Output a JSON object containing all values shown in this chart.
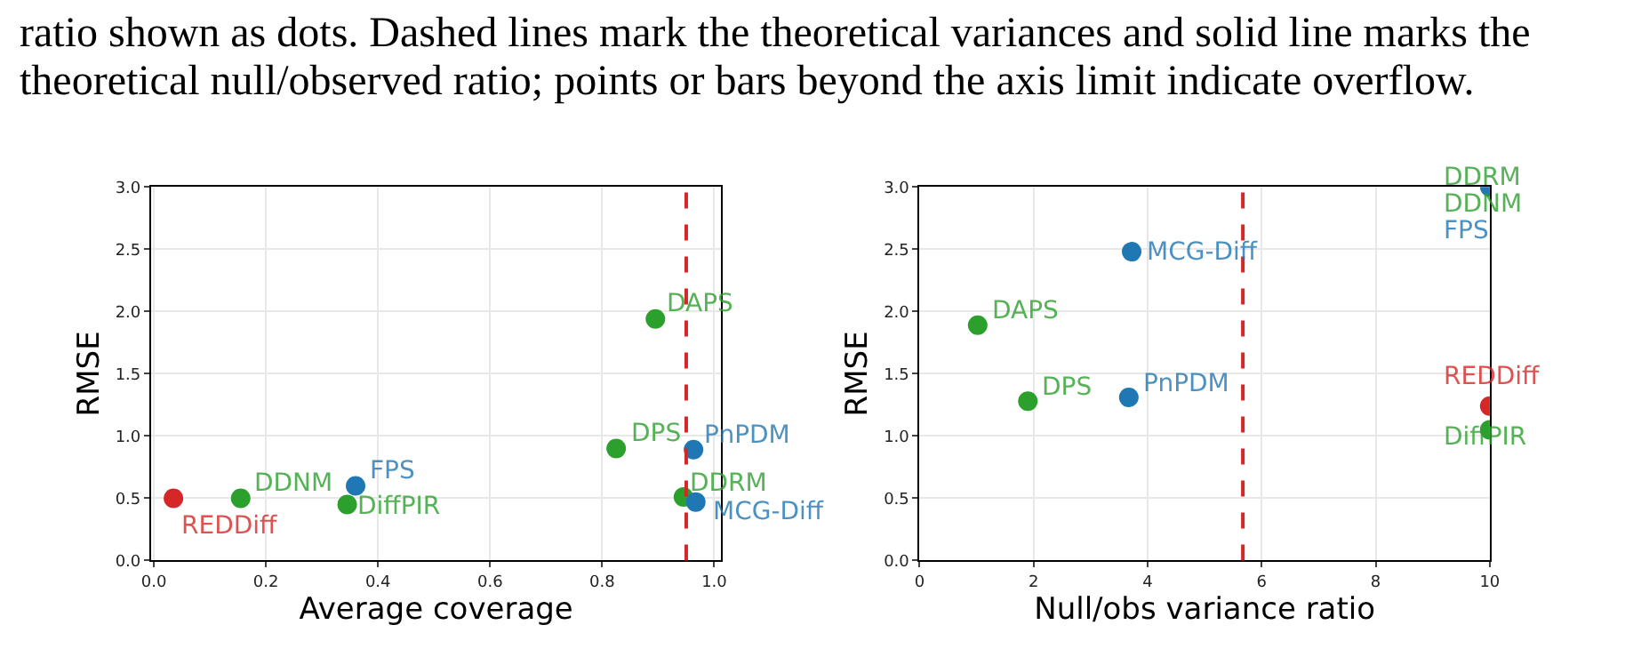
{
  "chart_data": [
    {
      "type": "scatter",
      "xlabel": "Average coverage",
      "ylabel": "RMSE",
      "xlim": [
        -0.005,
        1.0125
      ],
      "ylim": [
        0,
        3
      ],
      "xticks": [
        {
          "value": 0,
          "label": "0.0"
        },
        {
          "value": 0.2,
          "label": "0.2"
        },
        {
          "value": 0.4,
          "label": "0.4"
        },
        {
          "value": 0.6,
          "label": "0.6"
        },
        {
          "value": 0.8,
          "label": "0.8"
        },
        {
          "value": 1,
          "label": "1.0"
        }
      ],
      "yticks": [
        {
          "value": 0,
          "label": "0.0"
        },
        {
          "value": 0.5,
          "label": "0.5"
        },
        {
          "value": 1,
          "label": "1.0"
        },
        {
          "value": 1.5,
          "label": "1.5"
        },
        {
          "value": 2,
          "label": "2.0"
        },
        {
          "value": 2.5,
          "label": "2.5"
        },
        {
          "value": 3,
          "label": "3.0"
        }
      ],
      "grid": true,
      "marker": "circle",
      "legend": false,
      "annotations": [
        "ratio shown as dots. Dashed lines mark the theoretical variances and solid line marks the",
        "theoretical null/observed ratio; points or bars beyond the axis limit indicate overflow."
      ],
      "ref_lines": [
        {
          "axis": "x",
          "value": 0.95,
          "color": "#d62728",
          "line_style": "dashed"
        }
      ],
      "series": [
        {
          "name": "REDDiff",
          "color": "#d62728",
          "x": [
            0.035
          ],
          "values": [
            0.5
          ]
        },
        {
          "name": "DDNM",
          "color": "#2ca02c",
          "x": [
            0.155
          ],
          "values": [
            0.5
          ]
        },
        {
          "name": "FPS",
          "color": "#1f77b4",
          "x": [
            0.36
          ],
          "values": [
            0.6
          ]
        },
        {
          "name": "DiffPIR",
          "color": "#2ca02c",
          "x": [
            0.345
          ],
          "values": [
            0.45
          ]
        },
        {
          "name": "DPS",
          "color": "#2ca02c",
          "x": [
            0.825
          ],
          "values": [
            0.9
          ]
        },
        {
          "name": "DAPS",
          "color": "#2ca02c",
          "x": [
            0.895
          ],
          "values": [
            1.94
          ]
        },
        {
          "name": "PnPDM",
          "color": "#1f77b4",
          "x": [
            0.963
          ],
          "values": [
            0.89
          ]
        },
        {
          "name": "DDRM",
          "color": "#2ca02c",
          "x": [
            0.945
          ],
          "values": [
            0.51
          ]
        },
        {
          "name": "MCG-Diff",
          "color": "#1f77b4",
          "x": [
            0.967
          ],
          "values": [
            0.47
          ]
        }
      ]
    },
    {
      "type": "scatter",
      "xlabel": "Null/obs variance ratio",
      "ylabel": "RMSE",
      "xlim": [
        0,
        10
      ],
      "ylim": [
        0,
        3
      ],
      "xticks": [
        0,
        2,
        4,
        6,
        8,
        10
      ],
      "yticks": [
        {
          "value": 0,
          "label": "0.0"
        },
        {
          "value": 0.5,
          "label": "0.5"
        },
        {
          "value": 1,
          "label": "1.0"
        },
        {
          "value": 1.5,
          "label": "1.5"
        },
        {
          "value": 2,
          "label": "2.0"
        },
        {
          "value": 2.5,
          "label": "2.5"
        },
        {
          "value": 3,
          "label": "3.0"
        }
      ],
      "grid": true,
      "marker": "circle",
      "legend": false,
      "ref_lines": [
        {
          "axis": "x",
          "value": 5.67,
          "color": "#d62728",
          "line_style": "dashed"
        }
      ],
      "series": [
        {
          "name": "DAPS",
          "color": "#2ca02c",
          "x": [
            1.02
          ],
          "values": [
            1.89
          ]
        },
        {
          "name": "DPS",
          "color": "#2ca02c",
          "x": [
            1.9
          ],
          "values": [
            1.28
          ]
        },
        {
          "name": "PnPDM",
          "color": "#1f77b4",
          "x": [
            3.67
          ],
          "values": [
            1.31
          ]
        },
        {
          "name": "MCG-Diff",
          "color": "#1f77b4",
          "x": [
            3.72
          ],
          "values": [
            2.48
          ]
        },
        {
          "name": "DDRM",
          "color": "#2ca02c",
          "x": [
            null
          ],
          "values": [
            null
          ]
        },
        {
          "name": "DDNM",
          "color": "#2ca02c",
          "x": [
            null
          ],
          "values": [
            null
          ]
        },
        {
          "name": "FPS",
          "color": "#1f77b4",
          "x": [
            10
          ],
          "values": [
            3.0
          ]
        },
        {
          "name": "REDDiff",
          "color": "#d62728",
          "x": [
            10
          ],
          "values": [
            1.24
          ]
        },
        {
          "name": "DiffPIR",
          "color": "#2ca02c",
          "x": [
            10
          ],
          "values": [
            1.05
          ]
        }
      ]
    }
  ]
}
